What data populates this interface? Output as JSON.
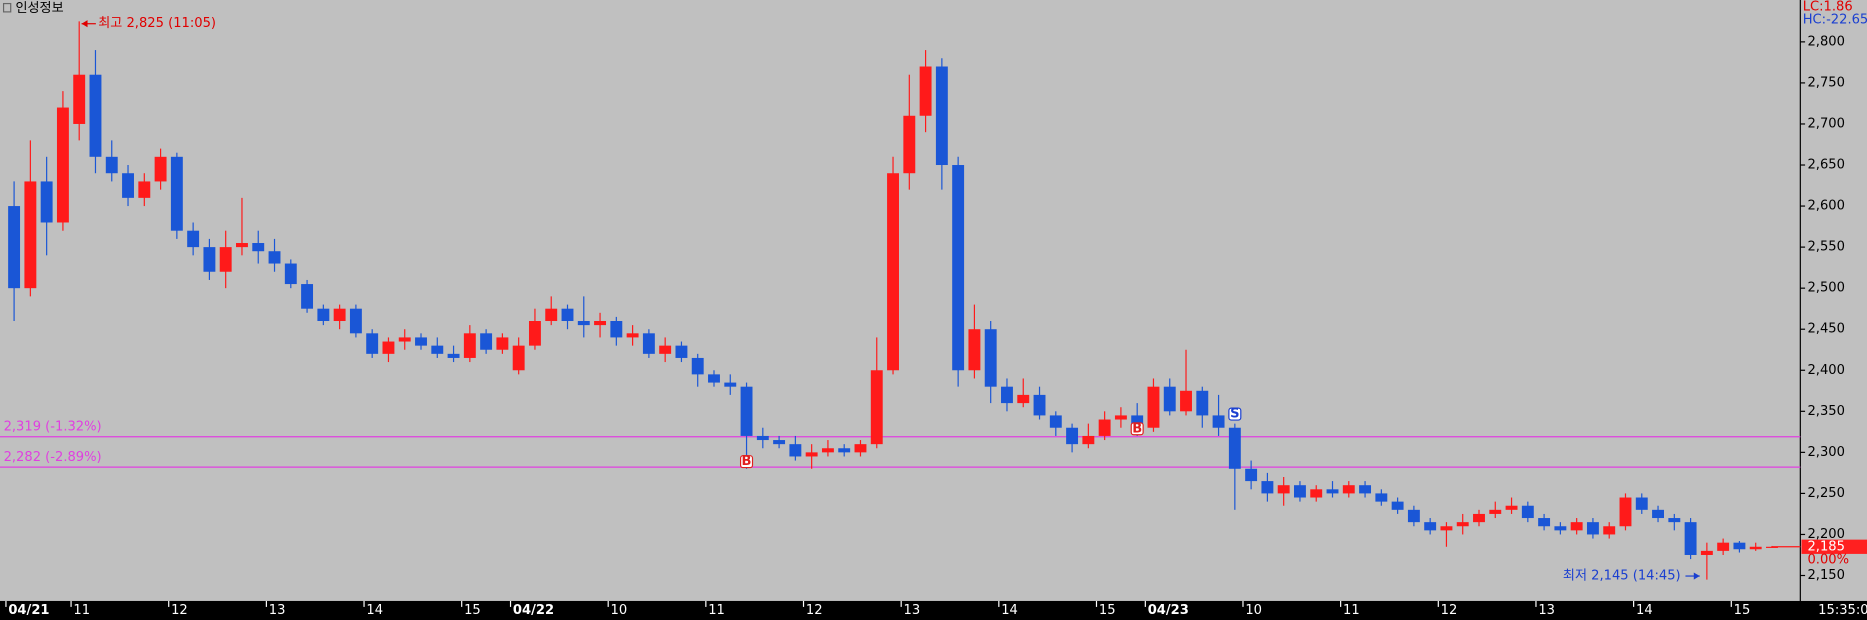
{
  "chart_data": {
    "type": "candlestick",
    "title": "인성정보",
    "stats": [
      {
        "label": "LC:1.86",
        "color": "#e00000"
      },
      {
        "label": "HC:-22.65",
        "color": "#1a3fd0"
      }
    ],
    "high_label": "최고 2,825 (11:05)",
    "low_label": "최저 2,145 (14:45)",
    "time_label": "15:35:00",
    "up_color": "#ff1a1a",
    "down_color": "#1a56d6",
    "categories": [
      "04/21",
      null,
      null,
      null,
      "11",
      null,
      null,
      null,
      null,
      null,
      "12",
      null,
      null,
      null,
      null,
      null,
      "13",
      null,
      null,
      null,
      null,
      null,
      "14",
      null,
      null,
      null,
      null,
      null,
      "15",
      null,
      null,
      "04/22",
      null,
      null,
      null,
      null,
      null,
      "10",
      null,
      null,
      null,
      null,
      null,
      "11",
      null,
      null,
      null,
      null,
      null,
      "12",
      null,
      null,
      null,
      null,
      null,
      "13",
      null,
      null,
      null,
      null,
      null,
      "14",
      null,
      null,
      null,
      null,
      null,
      "15",
      null,
      null,
      "04/23",
      null,
      null,
      null,
      null,
      null,
      "10",
      null,
      null,
      null,
      null,
      null,
      "11",
      null,
      null,
      null,
      null,
      null,
      "12",
      null,
      null,
      null,
      null,
      null,
      "13",
      null,
      null,
      null,
      null,
      null,
      "14",
      null,
      null,
      null,
      null,
      null,
      "15",
      null,
      null
    ],
    "open": [
      2600,
      2500,
      2630,
      2580,
      2700,
      2760,
      2660,
      2640,
      2610,
      2630,
      2660,
      2570,
      2550,
      2520,
      2550,
      2555,
      2545,
      2530,
      2505,
      2475,
      2460,
      2475,
      2445,
      2420,
      2435,
      2440,
      2430,
      2420,
      2415,
      2445,
      2425,
      2400,
      2430,
      2460,
      2475,
      2460,
      2455,
      2460,
      2440,
      2445,
      2420,
      2430,
      2415,
      2395,
      2385,
      2380,
      2320,
      2315,
      2310,
      2295,
      2300,
      2305,
      2300,
      2310,
      2400,
      2640,
      2710,
      2770,
      2650,
      2400,
      2450,
      2380,
      2360,
      2370,
      2345,
      2330,
      2310,
      2320,
      2340,
      2345,
      2330,
      2380,
      2350,
      2375,
      2345,
      2330,
      2280,
      2265,
      2250,
      2260,
      2245,
      2255,
      2250,
      2260,
      2250,
      2240,
      2230,
      2215,
      2205,
      2210,
      2215,
      2225,
      2230,
      2235,
      2220,
      2210,
      2205,
      2215,
      2200,
      2210,
      2245,
      2230,
      2220,
      2215,
      2175,
      2180,
      2190,
      2182,
      2185
    ],
    "high": [
      2630,
      2680,
      2660,
      2740,
      2825,
      2790,
      2680,
      2650,
      2640,
      2670,
      2665,
      2580,
      2560,
      2570,
      2610,
      2570,
      2560,
      2535,
      2510,
      2480,
      2480,
      2480,
      2450,
      2440,
      2450,
      2445,
      2440,
      2430,
      2455,
      2450,
      2445,
      2440,
      2475,
      2490,
      2480,
      2490,
      2470,
      2465,
      2455,
      2450,
      2440,
      2435,
      2420,
      2400,
      2395,
      2385,
      2330,
      2320,
      2320,
      2310,
      2315,
      2310,
      2315,
      2440,
      2660,
      2760,
      2790,
      2780,
      2660,
      2480,
      2460,
      2390,
      2390,
      2380,
      2350,
      2335,
      2335,
      2350,
      2355,
      2360,
      2390,
      2390,
      2425,
      2380,
      2370,
      2335,
      2290,
      2275,
      2270,
      2265,
      2260,
      2265,
      2265,
      2265,
      2255,
      2245,
      2235,
      2220,
      2215,
      2225,
      2230,
      2240,
      2245,
      2240,
      2225,
      2215,
      2220,
      2220,
      2215,
      2250,
      2250,
      2235,
      2225,
      2220,
      2190,
      2195,
      2192,
      2190,
      2186
    ],
    "low": [
      2460,
      2490,
      2540,
      2570,
      2680,
      2640,
      2630,
      2600,
      2600,
      2620,
      2560,
      2540,
      2510,
      2500,
      2540,
      2530,
      2520,
      2500,
      2470,
      2455,
      2450,
      2440,
      2415,
      2410,
      2425,
      2425,
      2415,
      2410,
      2410,
      2420,
      2420,
      2395,
      2425,
      2455,
      2450,
      2440,
      2440,
      2430,
      2430,
      2415,
      2410,
      2410,
      2380,
      2380,
      2370,
      2280,
      2305,
      2305,
      2290,
      2280,
      2295,
      2295,
      2295,
      2305,
      2395,
      2620,
      2690,
      2620,
      2380,
      2390,
      2360,
      2350,
      2355,
      2340,
      2320,
      2300,
      2305,
      2315,
      2330,
      2320,
      2325,
      2345,
      2345,
      2330,
      2320,
      2230,
      2255,
      2240,
      2235,
      2240,
      2240,
      2245,
      2245,
      2245,
      2235,
      2225,
      2210,
      2200,
      2185,
      2200,
      2210,
      2220,
      2225,
      2215,
      2205,
      2200,
      2200,
      2195,
      2195,
      2205,
      2225,
      2215,
      2205,
      2170,
      2145,
      2175,
      2178,
      2180,
      2184
    ],
    "close": [
      2500,
      2630,
      2580,
      2720,
      2760,
      2660,
      2640,
      2610,
      2630,
      2660,
      2570,
      2550,
      2520,
      2550,
      2555,
      2545,
      2530,
      2505,
      2475,
      2460,
      2475,
      2445,
      2420,
      2435,
      2440,
      2430,
      2420,
      2415,
      2445,
      2425,
      2440,
      2430,
      2460,
      2475,
      2460,
      2455,
      2460,
      2440,
      2445,
      2420,
      2430,
      2415,
      2395,
      2385,
      2380,
      2320,
      2315,
      2310,
      2295,
      2300,
      2305,
      2300,
      2310,
      2400,
      2640,
      2710,
      2770,
      2650,
      2400,
      2450,
      2380,
      2360,
      2370,
      2345,
      2330,
      2310,
      2320,
      2340,
      2345,
      2330,
      2380,
      2350,
      2375,
      2345,
      2330,
      2280,
      2265,
      2250,
      2260,
      2245,
      2255,
      2250,
      2260,
      2250,
      2240,
      2230,
      2215,
      2205,
      2210,
      2215,
      2225,
      2230,
      2235,
      2220,
      2210,
      2205,
      2215,
      2200,
      2210,
      2245,
      2230,
      2220,
      2215,
      2175,
      2180,
      2190,
      2182,
      2185,
      2185
    ],
    "signals": [
      "B",
      "B",
      "S"
    ],
    "lines": [
      {
        "value": 2319,
        "label": "2,319 (-1.32%)"
      },
      {
        "value": 2282,
        "label": "2,282 (-2.89%)"
      }
    ],
    "line_color": "#e040e0",
    "last": {
      "value": 2185,
      "label": "2,185"
    },
    "change_label": "0.00%",
    "ylim": [
      2119,
      2851
    ],
    "yticks": [
      {
        "value": 2150,
        "label": "2,150"
      },
      {
        "value": 2200,
        "label": "2,200"
      },
      {
        "value": 2250,
        "label": "2,250"
      },
      {
        "value": 2300,
        "label": "2,300"
      },
      {
        "value": 2350,
        "label": "2,350"
      },
      {
        "value": 2400,
        "label": "2,400"
      },
      {
        "value": 2450,
        "label": "2,450"
      },
      {
        "value": 2500,
        "label": "2,500"
      },
      {
        "value": 2550,
        "label": "2,550"
      },
      {
        "value": 2600,
        "label": "2,600"
      },
      {
        "value": 2650,
        "label": "2,650"
      },
      {
        "value": 2700,
        "label": "2,700"
      },
      {
        "value": 2750,
        "label": "2,750"
      },
      {
        "value": 2800,
        "label": "2,800"
      }
    ]
  }
}
